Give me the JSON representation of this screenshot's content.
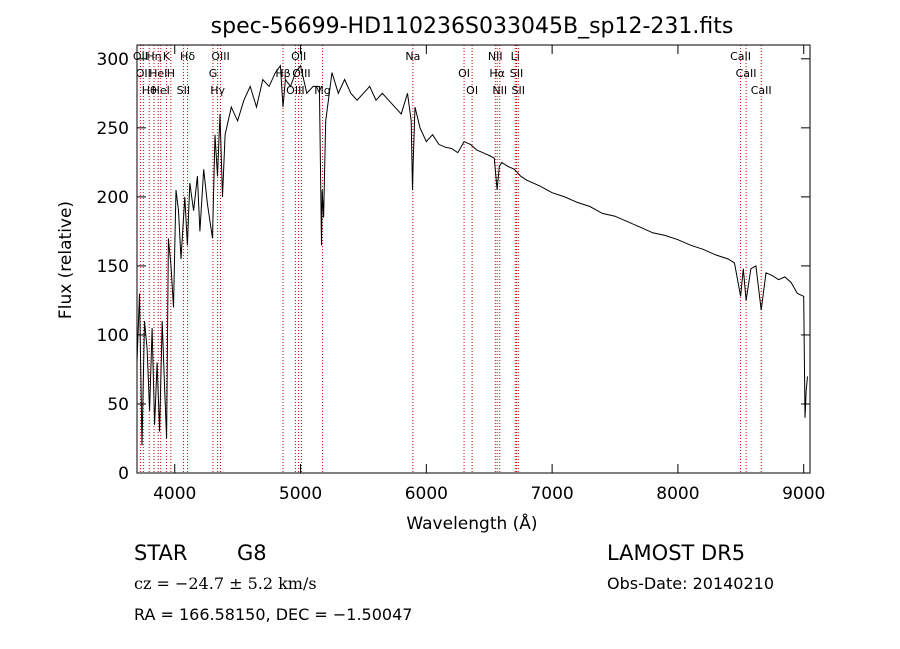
{
  "chart_data": {
    "type": "line",
    "title": "spec-56699-HD110236S033045B_sp12-231.fits",
    "xlabel": "Wavelength (Å)",
    "ylabel": "Flux (relative)",
    "xlim": [
      3700,
      9050
    ],
    "ylim": [
      0,
      310
    ],
    "xticks": [
      4000,
      5000,
      6000,
      7000,
      8000,
      9000
    ],
    "yticks": [
      0,
      50,
      100,
      150,
      200,
      250,
      300
    ],
    "grid": false,
    "series": [
      {
        "x": [
          3700,
          3720,
          3740,
          3760,
          3780,
          3800,
          3820,
          3840,
          3860,
          3880,
          3900,
          3920,
          3935,
          3950,
          3970,
          3990,
          4010,
          4030,
          4050,
          4080,
          4101,
          4120,
          4150,
          4180,
          4200,
          4230,
          4260,
          4300,
          4320,
          4340,
          4360,
          4380,
          4400,
          4450,
          4500,
          4550,
          4600,
          4650,
          4700,
          4750,
          4800,
          4840,
          4861,
          4880,
          4920,
          4960,
          5000,
          5050,
          5100,
          5150,
          5167,
          5172,
          5183,
          5200,
          5250,
          5300,
          5350,
          5400,
          5450,
          5500,
          5550,
          5600,
          5650,
          5700,
          5750,
          5800,
          5850,
          5880,
          5890,
          5896,
          5910,
          5950,
          6000,
          6050,
          6100,
          6150,
          6200,
          6250,
          6300,
          6350,
          6400,
          6450,
          6500,
          6540,
          6563,
          6580,
          6600,
          6650,
          6700,
          6750,
          6800,
          6900,
          7000,
          7100,
          7200,
          7300,
          7400,
          7500,
          7600,
          7700,
          7800,
          7900,
          8000,
          8100,
          8200,
          8300,
          8400,
          8450,
          8498,
          8520,
          8542,
          8580,
          8620,
          8662,
          8700,
          8750,
          8800,
          8850,
          8900,
          8950,
          9000,
          9010,
          9020,
          9030
        ],
        "y": [
          80,
          130,
          20,
          110,
          90,
          45,
          105,
          35,
          80,
          30,
          110,
          60,
          25,
          170,
          150,
          120,
          205,
          190,
          155,
          200,
          165,
          210,
          190,
          215,
          175,
          220,
          195,
          170,
          245,
          215,
          260,
          200,
          245,
          265,
          255,
          270,
          280,
          265,
          285,
          280,
          290,
          295,
          265,
          285,
          280,
          290,
          295,
          275,
          280,
          280,
          165,
          205,
          185,
          255,
          290,
          275,
          285,
          275,
          270,
          275,
          280,
          270,
          275,
          270,
          265,
          260,
          275,
          255,
          205,
          225,
          265,
          250,
          240,
          245,
          238,
          236,
          235,
          232,
          240,
          238,
          234,
          232,
          230,
          228,
          205,
          222,
          225,
          222,
          220,
          215,
          212,
          208,
          203,
          200,
          196,
          193,
          188,
          186,
          182,
          178,
          174,
          172,
          169,
          165,
          162,
          158,
          155,
          152,
          128,
          148,
          125,
          148,
          150,
          118,
          145,
          143,
          140,
          142,
          138,
          130,
          128,
          40,
          60,
          70
        ]
      }
    ],
    "emission_lines": [
      {
        "wavelength": 3727,
        "label": "OII"
      },
      {
        "wavelength": 3750,
        "label": "OII"
      },
      {
        "wavelength": 3797,
        "label": "Hθ"
      },
      {
        "wavelength": 3835,
        "label": "Hη"
      },
      {
        "wavelength": 3869,
        "label": "HeI"
      },
      {
        "wavelength": 3889,
        "label": "HeI"
      },
      {
        "wavelength": 3934,
        "label": "K"
      },
      {
        "wavelength": 3969,
        "label": "H"
      },
      {
        "wavelength": 4069,
        "label": "SII"
      },
      {
        "wavelength": 4102,
        "label": "Hδ"
      },
      {
        "wavelength": 4304,
        "label": "G"
      },
      {
        "wavelength": 4341,
        "label": "Hγ"
      },
      {
        "wavelength": 4364,
        "label": "OIII"
      },
      {
        "wavelength": 4861,
        "label": "Hβ"
      },
      {
        "wavelength": 4959,
        "label": "OIII"
      },
      {
        "wavelength": 4985,
        "label": "OII"
      },
      {
        "wavelength": 5007,
        "label": "OIII"
      },
      {
        "wavelength": 5175,
        "label": "Mg"
      },
      {
        "wavelength": 5893,
        "label": "Na"
      },
      {
        "wavelength": 6300,
        "label": "OI"
      },
      {
        "wavelength": 6364,
        "label": "OI"
      },
      {
        "wavelength": 6548,
        "label": "NII"
      },
      {
        "wavelength": 6563,
        "label": "Hα"
      },
      {
        "wavelength": 6584,
        "label": "NII"
      },
      {
        "wavelength": 6707,
        "label": "Li"
      },
      {
        "wavelength": 6717,
        "label": "SII"
      },
      {
        "wavelength": 6731,
        "label": "SII"
      },
      {
        "wavelength": 8498,
        "label": "CaII"
      },
      {
        "wavelength": 8542,
        "label": "CaII"
      },
      {
        "wavelength": 8662,
        "label": "CaII"
      }
    ],
    "line_color": "#000000",
    "marker_color": "#cc0000"
  },
  "info": {
    "object_class": "STAR",
    "subclass": "G8",
    "survey": "LAMOST  DR5",
    "cz": "cz = −24.7 ± 5.2 km/s",
    "obs_date": "Obs-Date: 20140210",
    "coords": "RA = 166.58150, DEC =  −1.50047"
  }
}
